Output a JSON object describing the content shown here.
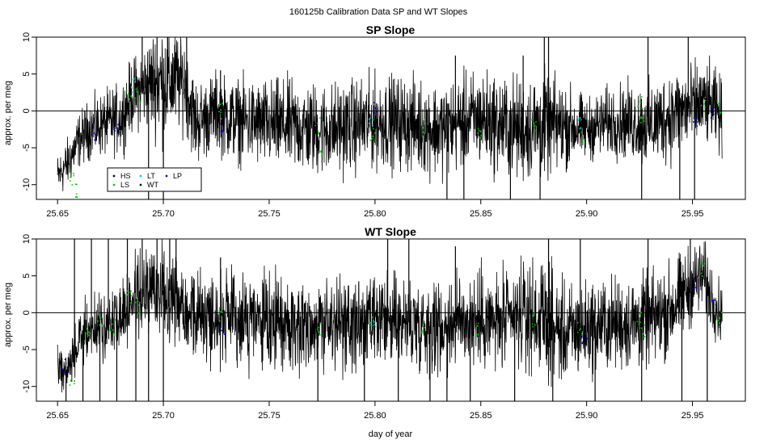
{
  "figure_title": "160125b   Calibration Data SP and WT Slopes",
  "colors": {
    "trace": "#000000",
    "HS": "#000000",
    "LS": "#00cc00",
    "LT": "#00cccc",
    "WT": "#000000",
    "LP": "#0000cc",
    "zero_line": "#000000"
  },
  "chart_data": [
    {
      "type": "line",
      "title": "SP Slope",
      "xlabel": "",
      "ylabel": "approx. per meg",
      "xlim": [
        25.64,
        25.975
      ],
      "ylim": [
        -12,
        10
      ],
      "xticks": [
        25.65,
        25.7,
        25.75,
        25.8,
        25.85,
        25.9,
        25.95
      ],
      "xtick_labels": [
        "25.65",
        "25.70",
        "25.75",
        "25.80",
        "25.85",
        "25.90",
        "25.95"
      ],
      "yticks": [
        -10,
        -5,
        0,
        5,
        10
      ],
      "ytick_labels": [
        "-10",
        "-5",
        "0",
        "5",
        "10"
      ],
      "reference_line_y": 0,
      "legend": {
        "placement": "bottom-left",
        "entries": [
          {
            "label": "HS",
            "color": "#000000"
          },
          {
            "label": "LS",
            "color": "#00cc00"
          },
          {
            "label": "LT",
            "color": "#00cccc"
          },
          {
            "label": "WT",
            "color": "#000000"
          },
          {
            "label": "LP",
            "color": "#0000cc"
          }
        ]
      },
      "trend": {
        "x": [
          25.65,
          25.655,
          25.66,
          25.665,
          25.67,
          25.675,
          25.68,
          25.685,
          25.69,
          25.695,
          25.7,
          25.705,
          25.71,
          25.715,
          25.72,
          25.725,
          25.73,
          25.74,
          25.75,
          25.76,
          25.77,
          25.78,
          25.79,
          25.8,
          25.81,
          25.82,
          25.83,
          25.84,
          25.85,
          25.86,
          25.87,
          25.88,
          25.89,
          25.9,
          25.91,
          25.92,
          25.93,
          25.94,
          25.95,
          25.955,
          25.96,
          25.964
        ],
        "y": [
          -9,
          -7,
          -4,
          -2.5,
          -2,
          -1.5,
          -1,
          2,
          3,
          4,
          4,
          4,
          4,
          -1.5,
          -1,
          0,
          -1,
          -1.5,
          -2,
          -2,
          -2.5,
          -2.5,
          -2,
          -1.5,
          -1.5,
          -2,
          -2.5,
          -1.5,
          -1,
          -2,
          -2.5,
          -2,
          -2,
          -2.5,
          -1.5,
          -1.5,
          -2,
          -0.5,
          0.5,
          1,
          0.5,
          -1
        ]
      },
      "amplitude": {
        "x": [
          25.65,
          25.69,
          25.7,
          25.71,
          25.72,
          25.76,
          25.8,
          25.84,
          25.88,
          25.9,
          25.94,
          25.964
        ],
        "y": [
          1.5,
          2.5,
          4,
          3,
          2.5,
          3,
          3,
          3,
          3.5,
          2,
          3,
          2.5
        ]
      },
      "spikes": [
        {
          "x": 25.69,
          "y": 10
        },
        {
          "x": 25.693,
          "y": -12
        },
        {
          "x": 25.697,
          "y": 10
        },
        {
          "x": 25.7,
          "y": -12
        },
        {
          "x": 25.702,
          "y": 10
        },
        {
          "x": 25.711,
          "y": 10
        },
        {
          "x": 25.727,
          "y": 5.5
        },
        {
          "x": 25.834,
          "y": -12
        },
        {
          "x": 25.838,
          "y": 7.5
        },
        {
          "x": 25.842,
          "y": -12
        },
        {
          "x": 25.864,
          "y": -12
        },
        {
          "x": 25.87,
          "y": 7.5
        },
        {
          "x": 25.878,
          "y": -12
        },
        {
          "x": 25.88,
          "y": 10
        },
        {
          "x": 25.882,
          "y": 10
        },
        {
          "x": 25.926,
          "y": -12
        },
        {
          "x": 25.929,
          "y": 10
        },
        {
          "x": 25.944,
          "y": -12
        },
        {
          "x": 25.948,
          "y": 10
        },
        {
          "x": 25.951,
          "y": -12
        }
      ],
      "markers": [
        {
          "x": 25.657,
          "y": -9,
          "s": "LS"
        },
        {
          "x": 25.659,
          "y": -11,
          "s": "LS"
        },
        {
          "x": 25.668,
          "y": -3,
          "s": "LP"
        },
        {
          "x": 25.678,
          "y": -2,
          "s": "LP"
        },
        {
          "x": 25.684,
          "y": 2.5,
          "s": "LS"
        },
        {
          "x": 25.686,
          "y": 3.5,
          "s": "LT"
        },
        {
          "x": 25.688,
          "y": 2,
          "s": "LS"
        },
        {
          "x": 25.727,
          "y": 0,
          "s": "LS"
        },
        {
          "x": 25.728,
          "y": -2,
          "s": "LP"
        },
        {
          "x": 25.773,
          "y": -2,
          "s": "LS"
        },
        {
          "x": 25.774,
          "y": -6,
          "s": "LS"
        },
        {
          "x": 25.798,
          "y": -1,
          "s": "LT"
        },
        {
          "x": 25.799,
          "y": -3,
          "s": "LS"
        },
        {
          "x": 25.8,
          "y": 0.5,
          "s": "LP"
        },
        {
          "x": 25.823,
          "y": -2,
          "s": "LS"
        },
        {
          "x": 25.849,
          "y": -3,
          "s": "LS"
        },
        {
          "x": 25.875,
          "y": -2,
          "s": "LS"
        },
        {
          "x": 25.897,
          "y": -2,
          "s": "LT"
        },
        {
          "x": 25.898,
          "y": -3.5,
          "s": "LS"
        },
        {
          "x": 25.925,
          "y": 1,
          "s": "LS"
        },
        {
          "x": 25.926,
          "y": -1,
          "s": "LS"
        },
        {
          "x": 25.951,
          "y": -1,
          "s": "LP"
        },
        {
          "x": 25.955,
          "y": 1,
          "s": "LS"
        },
        {
          "x": 25.96,
          "y": -0.5,
          "s": "LP"
        },
        {
          "x": 25.963,
          "y": 0.5,
          "s": "LS"
        }
      ]
    },
    {
      "type": "line",
      "title": "WT Slope",
      "xlabel": "day of year",
      "ylabel": "approx. per meg",
      "xlim": [
        25.64,
        25.975
      ],
      "ylim": [
        -12,
        10
      ],
      "xticks": [
        25.65,
        25.7,
        25.75,
        25.8,
        25.85,
        25.9,
        25.95
      ],
      "xtick_labels": [
        "25.65",
        "25.70",
        "25.75",
        "25.80",
        "25.85",
        "25.90",
        "25.95"
      ],
      "yticks": [
        -10,
        -5,
        0,
        5,
        10
      ],
      "ytick_labels": [
        "-10",
        "-5",
        "0",
        "5",
        "10"
      ],
      "reference_line_y": 0,
      "trend": {
        "x": [
          25.65,
          25.655,
          25.66,
          25.665,
          25.67,
          25.675,
          25.68,
          25.685,
          25.69,
          25.695,
          25.7,
          25.705,
          25.71,
          25.715,
          25.72,
          25.725,
          25.73,
          25.74,
          25.75,
          25.76,
          25.77,
          25.78,
          25.79,
          25.8,
          25.81,
          25.82,
          25.83,
          25.84,
          25.85,
          25.86,
          25.87,
          25.88,
          25.89,
          25.9,
          25.91,
          25.92,
          25.93,
          25.94,
          25.95,
          25.955,
          25.96,
          25.964
        ],
        "y": [
          -7,
          -8,
          -4,
          -2,
          -2,
          -1.5,
          -0.5,
          1.5,
          2.5,
          3,
          3,
          3,
          1,
          0,
          -0.5,
          -0.5,
          -1,
          -1,
          -1.5,
          -1.5,
          -1.5,
          -1.5,
          -2,
          -1.5,
          -1,
          -1.5,
          -2,
          -1,
          -1,
          -1.5,
          -0.5,
          -1,
          -3,
          -2,
          -1.5,
          -1.5,
          -1,
          0.5,
          4,
          5,
          1.5,
          -0.5
        ]
      },
      "amplitude": {
        "x": [
          25.65,
          25.69,
          25.7,
          25.71,
          25.72,
          25.76,
          25.8,
          25.84,
          25.88,
          25.9,
          25.94,
          25.964
        ],
        "y": [
          1.5,
          2.5,
          3.5,
          3,
          3,
          3,
          3,
          3,
          3.5,
          3,
          3,
          2
        ]
      },
      "spikes": [
        {
          "x": 25.654,
          "y": -12
        },
        {
          "x": 25.658,
          "y": 10
        },
        {
          "x": 25.662,
          "y": -12
        },
        {
          "x": 25.666,
          "y": 10
        },
        {
          "x": 25.67,
          "y": -12
        },
        {
          "x": 25.674,
          "y": 10
        },
        {
          "x": 25.678,
          "y": -12
        },
        {
          "x": 25.683,
          "y": 10
        },
        {
          "x": 25.687,
          "y": -12
        },
        {
          "x": 25.69,
          "y": 10
        },
        {
          "x": 25.693,
          "y": -12
        },
        {
          "x": 25.697,
          "y": 10
        },
        {
          "x": 25.7,
          "y": -12
        },
        {
          "x": 25.703,
          "y": 10
        },
        {
          "x": 25.706,
          "y": 10
        },
        {
          "x": 25.727,
          "y": 7.5
        },
        {
          "x": 25.773,
          "y": -12
        },
        {
          "x": 25.795,
          "y": -12
        },
        {
          "x": 25.806,
          "y": 10
        },
        {
          "x": 25.811,
          "y": -12
        },
        {
          "x": 25.816,
          "y": 10
        },
        {
          "x": 25.826,
          "y": -12
        },
        {
          "x": 25.834,
          "y": -12
        },
        {
          "x": 25.838,
          "y": 9
        },
        {
          "x": 25.845,
          "y": -12
        },
        {
          "x": 25.866,
          "y": -12
        },
        {
          "x": 25.882,
          "y": 10
        },
        {
          "x": 25.884,
          "y": -12
        },
        {
          "x": 25.897,
          "y": 10
        },
        {
          "x": 25.904,
          "y": -12
        },
        {
          "x": 25.926,
          "y": -12
        },
        {
          "x": 25.929,
          "y": 10
        },
        {
          "x": 25.945,
          "y": -12
        },
        {
          "x": 25.949,
          "y": 10
        },
        {
          "x": 25.957,
          "y": -12
        }
      ],
      "markers": [
        {
          "x": 25.653,
          "y": -7,
          "s": "LP"
        },
        {
          "x": 25.657,
          "y": -9,
          "s": "LS"
        },
        {
          "x": 25.664,
          "y": -3,
          "s": "LS"
        },
        {
          "x": 25.67,
          "y": -1,
          "s": "LS"
        },
        {
          "x": 25.676,
          "y": -2,
          "s": "LS"
        },
        {
          "x": 25.684,
          "y": 2,
          "s": "LS"
        },
        {
          "x": 25.688,
          "y": 1,
          "s": "LS"
        },
        {
          "x": 25.727,
          "y": -0.5,
          "s": "LS"
        },
        {
          "x": 25.728,
          "y": -2,
          "s": "LP"
        },
        {
          "x": 25.774,
          "y": -2,
          "s": "LS"
        },
        {
          "x": 25.798,
          "y": -1.5,
          "s": "LS"
        },
        {
          "x": 25.799,
          "y": -1,
          "s": "LT"
        },
        {
          "x": 25.823,
          "y": -2,
          "s": "LS"
        },
        {
          "x": 25.849,
          "y": -2.5,
          "s": "LS"
        },
        {
          "x": 25.875,
          "y": -1,
          "s": "LS"
        },
        {
          "x": 25.897,
          "y": -2,
          "s": "LS"
        },
        {
          "x": 25.899,
          "y": -3.5,
          "s": "LP"
        },
        {
          "x": 25.925,
          "y": -1,
          "s": "LS"
        },
        {
          "x": 25.927,
          "y": -2.5,
          "s": "LS"
        },
        {
          "x": 25.951,
          "y": 4,
          "s": "LP"
        },
        {
          "x": 25.955,
          "y": 6,
          "s": "LS"
        },
        {
          "x": 25.96,
          "y": 2,
          "s": "LP"
        },
        {
          "x": 25.963,
          "y": -1,
          "s": "LS"
        }
      ]
    }
  ]
}
